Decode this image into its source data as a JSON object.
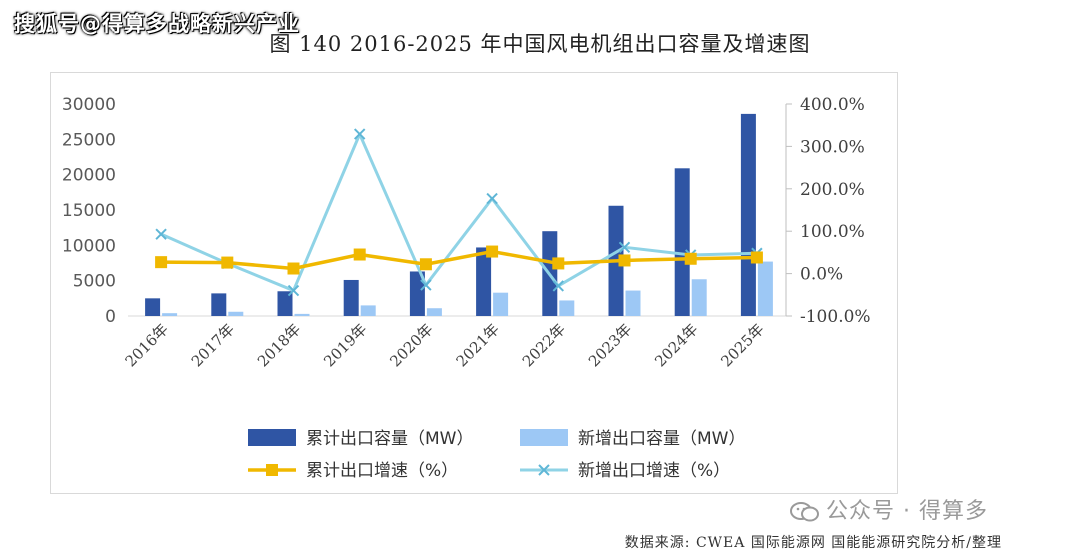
{
  "watermark_top": "搜狐号@得算多战略新兴产业",
  "title": "图 140 2016-2025 年中国风电机组出口容量及增速图",
  "watermark_bottom": "公众号 · 得算多",
  "source": "数据来源: CWEA 国际能源网 国能能源研究院分析/整理",
  "colors": {
    "cumulative_bar": "#2f55a4",
    "new_bar": "#9dc8f5",
    "cumulative_growth": "#f0b800",
    "new_growth": "#8fd3e6"
  },
  "chart_data": {
    "type": "bar",
    "categories": [
      "2016年",
      "2017年",
      "2018年",
      "2019年",
      "2020年",
      "2021年",
      "2022年",
      "2023年",
      "2024年",
      "2025年"
    ],
    "y_left": {
      "ticks": [
        "30000",
        "25000",
        "20000",
        "15000",
        "10000",
        "5000",
        "0"
      ],
      "ylim": [
        0,
        30000
      ]
    },
    "y_right": {
      "ticks": [
        "400.0%",
        "300.0%",
        "200.0%",
        "100.0%",
        "0.0%",
        "-100.0%"
      ],
      "ylim": [
        -100,
        400
      ]
    },
    "series": [
      {
        "name": "累计出口容量（MW）",
        "type": "bar",
        "axis": "left",
        "values": [
          2500,
          3200,
          3500,
          5100,
          6300,
          9700,
          12000,
          15600,
          20900,
          28600
        ]
      },
      {
        "name": "新增出口容量（MW）",
        "type": "bar",
        "axis": "left",
        "values": [
          400,
          600,
          300,
          1500,
          1100,
          3300,
          2200,
          3600,
          5200,
          7700
        ]
      },
      {
        "name": "累计出口增速（%）",
        "type": "line",
        "axis": "right",
        "marker": "square",
        "values": [
          27,
          26,
          12,
          45,
          22,
          52,
          24,
          31,
          35,
          38
        ]
      },
      {
        "name": "新增出口增速（%）",
        "type": "line",
        "axis": "right",
        "marker": "x",
        "values": [
          93,
          24,
          -40,
          329,
          -27,
          177,
          -29,
          62,
          44,
          48
        ]
      }
    ]
  }
}
